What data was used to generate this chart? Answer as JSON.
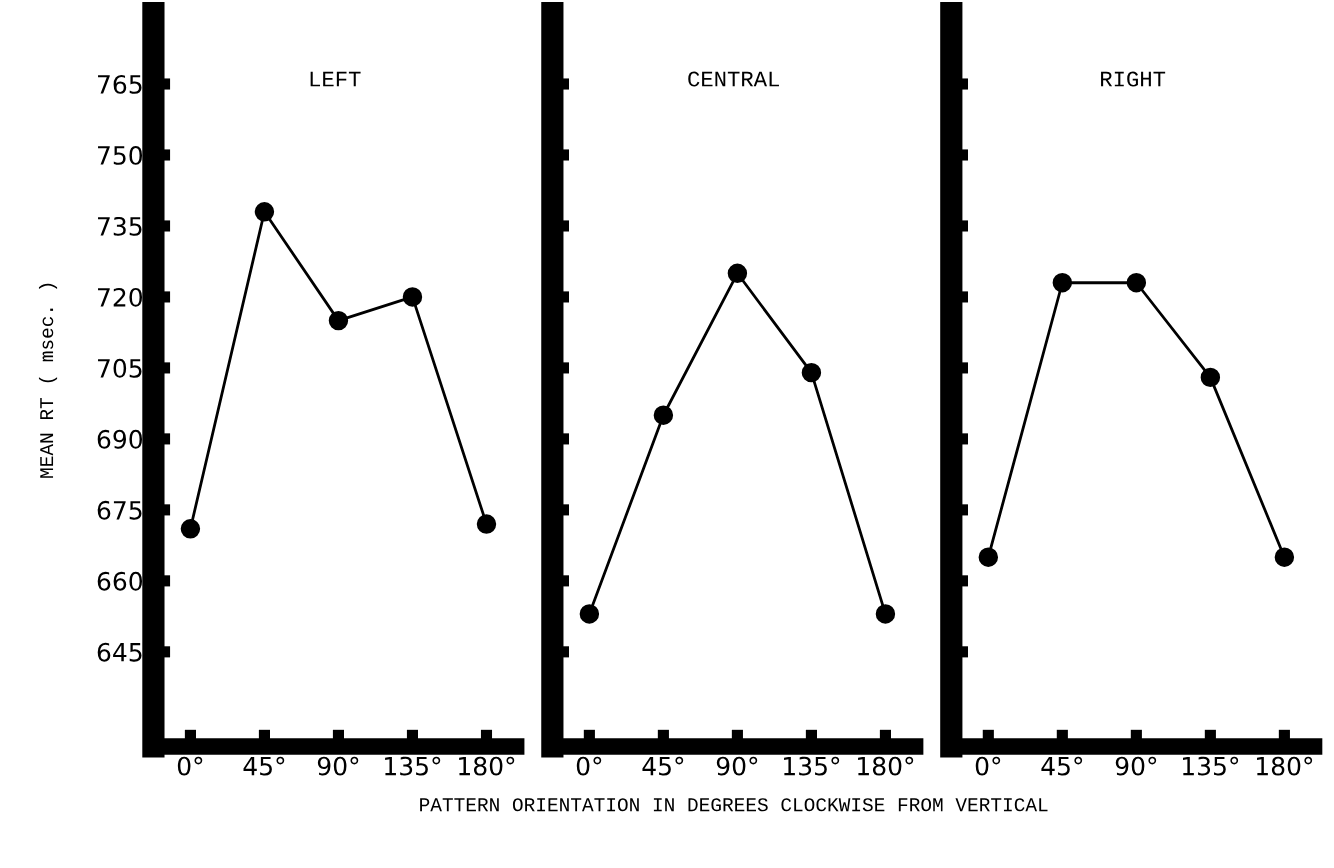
{
  "chart_data": [
    {
      "type": "line",
      "title": "LEFT",
      "ylabel": "MEAN RT ( msec. )",
      "categories": [
        "0°",
        "45°",
        "90°",
        "135°",
        "180°"
      ],
      "series": [
        {
          "color": "#000000",
          "values": [
            671,
            738,
            715,
            720,
            672
          ]
        }
      ],
      "ylim": [
        625,
        780
      ],
      "yticks": [
        645,
        660,
        675,
        690,
        705,
        720,
        735,
        750,
        765
      ],
      "marker": "circle",
      "line_style": "solid",
      "grid": false,
      "legend": false
    },
    {
      "type": "line",
      "title": "CENTRAL",
      "xlabel": "PATTERN ORIENTATION IN DEGREES CLOCKWISE FROM VERTICAL",
      "categories": [
        "0°",
        "45°",
        "90°",
        "135°",
        "180°"
      ],
      "series": [
        {
          "color": "#000000",
          "values": [
            653,
            695,
            725,
            704,
            653
          ]
        }
      ],
      "ylim": [
        625,
        780
      ],
      "yticks": [
        645,
        660,
        675,
        690,
        705,
        720,
        735,
        750,
        765
      ],
      "tick_labels": "x",
      "marker": "circle",
      "line_style": "solid",
      "grid": false,
      "legend": false
    },
    {
      "type": "line",
      "title": "RIGHT",
      "categories": [
        "0°",
        "45°",
        "90°",
        "135°",
        "180°"
      ],
      "series": [
        {
          "color": "#000000",
          "values": [
            665,
            723,
            723,
            703,
            665
          ]
        }
      ],
      "ylim": [
        625,
        780
      ],
      "yticks": [
        645,
        660,
        675,
        690,
        705,
        720,
        735,
        750,
        765
      ],
      "tick_labels": "x",
      "marker": "circle",
      "line_style": "solid",
      "grid": false,
      "legend": false
    }
  ]
}
